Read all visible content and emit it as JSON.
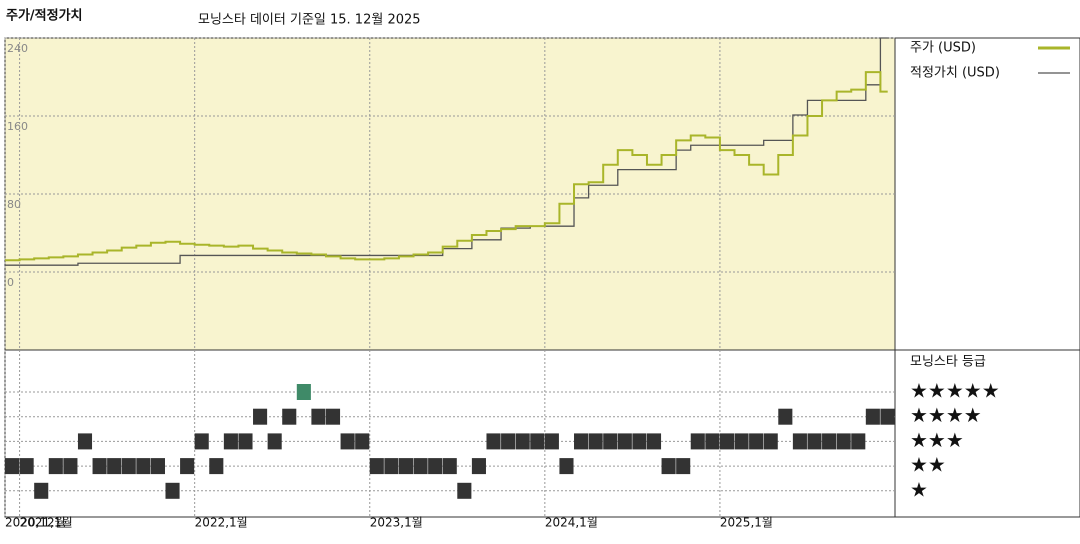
{
  "chart_data": {
    "type": "line",
    "title": "주가/적정가치",
    "subtitle": "모닝스타 데이터 기준일 15. 12월 2025",
    "x": [
      "2020-12",
      "2021-01",
      "2021-02",
      "2021-03",
      "2021-04",
      "2021-05",
      "2021-06",
      "2021-07",
      "2021-08",
      "2021-09",
      "2021-10",
      "2021-11",
      "2021-12",
      "2022-01",
      "2022-02",
      "2022-03",
      "2022-04",
      "2022-05",
      "2022-06",
      "2022-07",
      "2022-08",
      "2022-09",
      "2022-10",
      "2022-11",
      "2022-12",
      "2023-01",
      "2023-02",
      "2023-03",
      "2023-04",
      "2023-05",
      "2023-06",
      "2023-07",
      "2023-08",
      "2023-09",
      "2023-10",
      "2023-11",
      "2023-12",
      "2024-01",
      "2024-02",
      "2024-03",
      "2024-04",
      "2024-05",
      "2024-06",
      "2024-07",
      "2024-08",
      "2024-09",
      "2024-10",
      "2024-11",
      "2024-12",
      "2025-01",
      "2025-02",
      "2025-03",
      "2025-04",
      "2025-05",
      "2025-06",
      "2025-07",
      "2025-08",
      "2025-09",
      "2025-10",
      "2025-11",
      "2025-12"
    ],
    "series": [
      {
        "name": "주가 (USD)",
        "color": "#a9b52a",
        "values": [
          12,
          13,
          14,
          15,
          16,
          18,
          20,
          22,
          25,
          27,
          30,
          31,
          29,
          28,
          27,
          26,
          27,
          24,
          22,
          20,
          19,
          18,
          16,
          14,
          13,
          13,
          14,
          16,
          18,
          20,
          26,
          32,
          38,
          42,
          44,
          47,
          47,
          50,
          70,
          90,
          92,
          110,
          125,
          120,
          110,
          120,
          135,
          140,
          138,
          125,
          120,
          110,
          100,
          120,
          140,
          160,
          176,
          185,
          187,
          205,
          185
        ]
      },
      {
        "name": "적정가치 (USD)",
        "color": "#555555",
        "values": [
          7,
          7,
          7,
          7,
          7,
          9,
          9,
          9,
          9,
          9,
          9,
          9,
          17,
          17,
          17,
          17,
          17,
          17,
          17,
          17,
          17,
          17,
          17,
          17,
          17,
          17,
          17,
          17,
          17,
          17,
          24,
          24,
          33,
          33,
          45,
          45,
          47,
          47,
          47,
          76,
          89,
          89,
          105,
          105,
          105,
          105,
          125,
          130,
          130,
          130,
          130,
          130,
          135,
          135,
          161,
          176,
          176,
          176,
          176,
          192,
          240
        ]
      }
    ],
    "ylim": [
      -80,
      240
    ],
    "yticks": [
      0,
      80,
      160,
      240
    ],
    "xticks": [
      {
        "value": "2020-12",
        "label": "2020,12월"
      },
      {
        "value": "2021-01",
        "label": "2021,1월"
      },
      {
        "value": "2022-01",
        "label": "2022,1월"
      },
      {
        "value": "2023-01",
        "label": "2023,1월"
      },
      {
        "value": "2024-01",
        "label": "2024,1월"
      },
      {
        "value": "2025-01",
        "label": "2025,1월"
      }
    ],
    "grid": true,
    "ratings": {
      "title": "모닝스타 등급",
      "levels": [
        "★★★★★",
        "★★★★",
        "★★★",
        "★★",
        "★"
      ],
      "highlight_color": "#3f8a68",
      "color": "#333333",
      "values": [
        2,
        2,
        1,
        2,
        2,
        3,
        2,
        2,
        2,
        2,
        2,
        1,
        2,
        3,
        2,
        3,
        3,
        4,
        3,
        4,
        5,
        4,
        4,
        3,
        3,
        2,
        2,
        2,
        2,
        2,
        2,
        1,
        2,
        3,
        3,
        3,
        3,
        3,
        2,
        3,
        3,
        3,
        3,
        3,
        3,
        2,
        2,
        3,
        3,
        3,
        3,
        3,
        3,
        4,
        3,
        3,
        3,
        3,
        3,
        4,
        4
      ]
    }
  }
}
